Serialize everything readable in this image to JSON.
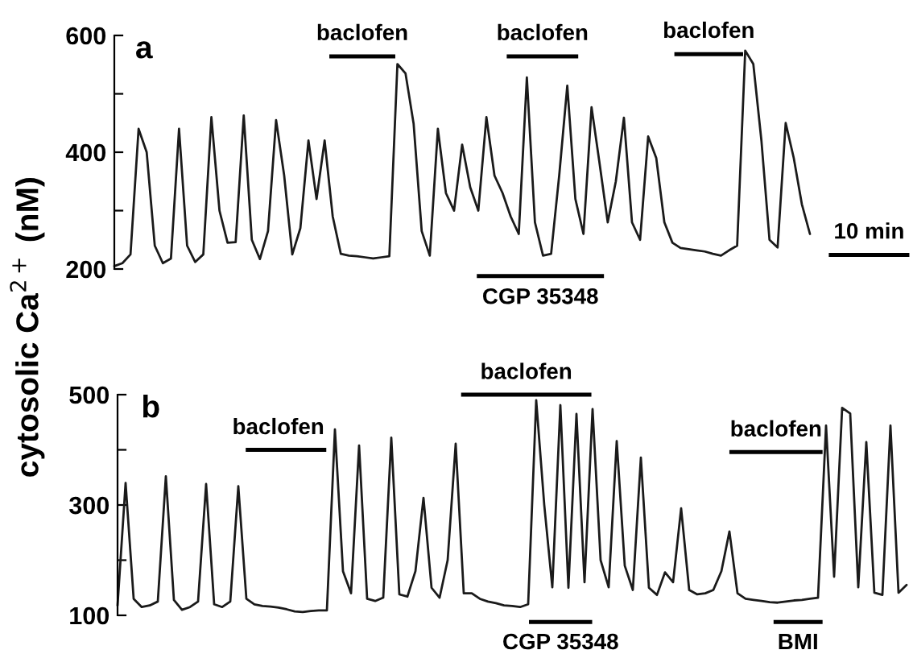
{
  "chart_data": [
    {
      "type": "line",
      "title": "a",
      "ylabel": "cytosolic Ca$^{2+}$ (nM)",
      "categories": [
        null,
        null,
        null,
        null,
        null,
        null,
        null,
        null,
        null,
        null,
        null,
        null,
        null,
        null,
        null,
        null,
        null,
        null,
        null,
        null,
        null,
        null,
        null,
        null,
        null,
        null,
        null,
        null,
        null,
        null,
        null,
        null,
        null,
        null,
        null,
        null,
        null,
        null,
        null,
        null,
        null,
        null,
        null,
        null,
        null,
        null,
        null,
        null,
        null,
        null,
        null,
        null,
        null,
        null,
        null,
        null,
        null,
        null,
        null,
        null,
        null,
        null,
        null,
        null,
        null,
        null,
        null,
        null,
        null,
        null,
        null,
        null,
        null,
        null,
        null,
        null,
        null,
        null,
        null,
        null,
        null,
        null,
        null,
        null,
        null,
        null,
        null
      ],
      "ylim": [
        200,
        600
      ],
      "yticks": [
        200,
        {
          "value": 300,
          "label": null
        },
        400,
        {
          "value": 500,
          "label": null
        },
        600
      ],
      "tick_labels": "y",
      "grid": false,
      "marker": "none",
      "line_style": "solid",
      "series": [
        {
          "color": "#1a1a1a",
          "values": [
            205,
            210,
            225,
            440,
            400,
            240,
            210,
            218,
            440,
            240,
            212,
            225,
            460,
            300,
            245,
            246,
            463,
            250,
            217,
            265,
            455,
            360,
            225,
            270,
            420,
            320,
            420,
            290,
            226,
            223,
            222,
            220,
            218,
            220,
            222,
            551,
            535,
            449,
            265,
            223,
            440,
            330,
            300,
            413,
            340,
            300,
            460,
            360,
            330,
            290,
            260,
            528,
            280,
            223,
            226,
            360,
            514,
            320,
            260,
            477,
            380,
            280,
            350,
            459,
            280,
            250,
            427,
            390,
            280,
            245,
            236,
            234,
            232,
            230,
            226,
            223,
            232,
            240,
            574,
            551,
            420,
            250,
            237,
            450,
            390,
            311,
            260
          ]
        }
      ],
      "annotations": [
        "baclofen",
        "baclofen",
        "CGP 35348",
        "baclofen",
        "10 min"
      ]
    },
    {
      "type": "line",
      "title": "b",
      "categories": [
        null,
        null,
        null,
        null,
        null,
        null,
        null,
        null,
        null,
        null,
        null,
        null,
        null,
        null,
        null,
        null,
        null,
        null,
        null,
        null,
        null,
        null,
        null,
        null,
        null,
        null,
        null,
        null,
        null,
        null,
        null,
        null,
        null,
        null,
        null,
        null,
        null,
        null,
        null,
        null,
        null,
        null,
        null,
        null,
        null,
        null,
        null,
        null,
        null,
        null,
        null,
        null,
        null,
        null,
        null,
        null,
        null,
        null,
        null,
        null,
        null,
        null,
        null,
        null,
        null,
        null,
        null,
        null,
        null,
        null,
        null,
        null,
        null,
        null,
        null,
        null,
        null,
        null,
        null,
        null,
        null,
        null,
        null,
        null,
        null,
        null,
        null,
        null,
        null,
        null,
        null,
        null,
        null,
        null,
        null,
        null,
        null,
        null,
        null
      ],
      "ylim": [
        100,
        500
      ],
      "yticks": [
        100,
        {
          "value": 200,
          "label": null
        },
        300,
        {
          "value": 400,
          "label": null
        },
        500
      ],
      "tick_labels": "y",
      "grid": false,
      "marker": "none",
      "line_style": "solid",
      "series": [
        {
          "color": "#1a1a1a",
          "values": [
            118,
            340,
            130,
            115,
            118,
            125,
            352,
            128,
            110,
            115,
            125,
            338,
            120,
            115,
            125,
            334,
            130,
            120,
            117,
            116,
            114,
            111,
            107,
            106,
            108,
            109,
            109,
            437,
            180,
            140,
            408,
            130,
            126,
            132,
            422,
            138,
            134,
            180,
            313,
            150,
            132,
            200,
            411,
            140,
            140,
            130,
            125,
            122,
            118,
            117,
            115,
            120,
            490,
            300,
            151,
            481,
            150,
            465,
            160,
            474,
            200,
            151,
            416,
            190,
            146,
            386,
            150,
            137,
            178,
            160,
            294,
            146,
            138,
            140,
            146,
            180,
            252,
            140,
            130,
            128,
            126,
            124,
            123,
            125,
            127,
            128,
            130,
            132,
            444,
            170,
            476,
            466,
            151,
            414,
            141,
            137,
            444,
            141,
            155
          ]
        }
      ],
      "annotations": [
        "baclofen",
        "baclofen",
        "CGP 35348",
        "baclofen",
        "BMI"
      ]
    }
  ]
}
